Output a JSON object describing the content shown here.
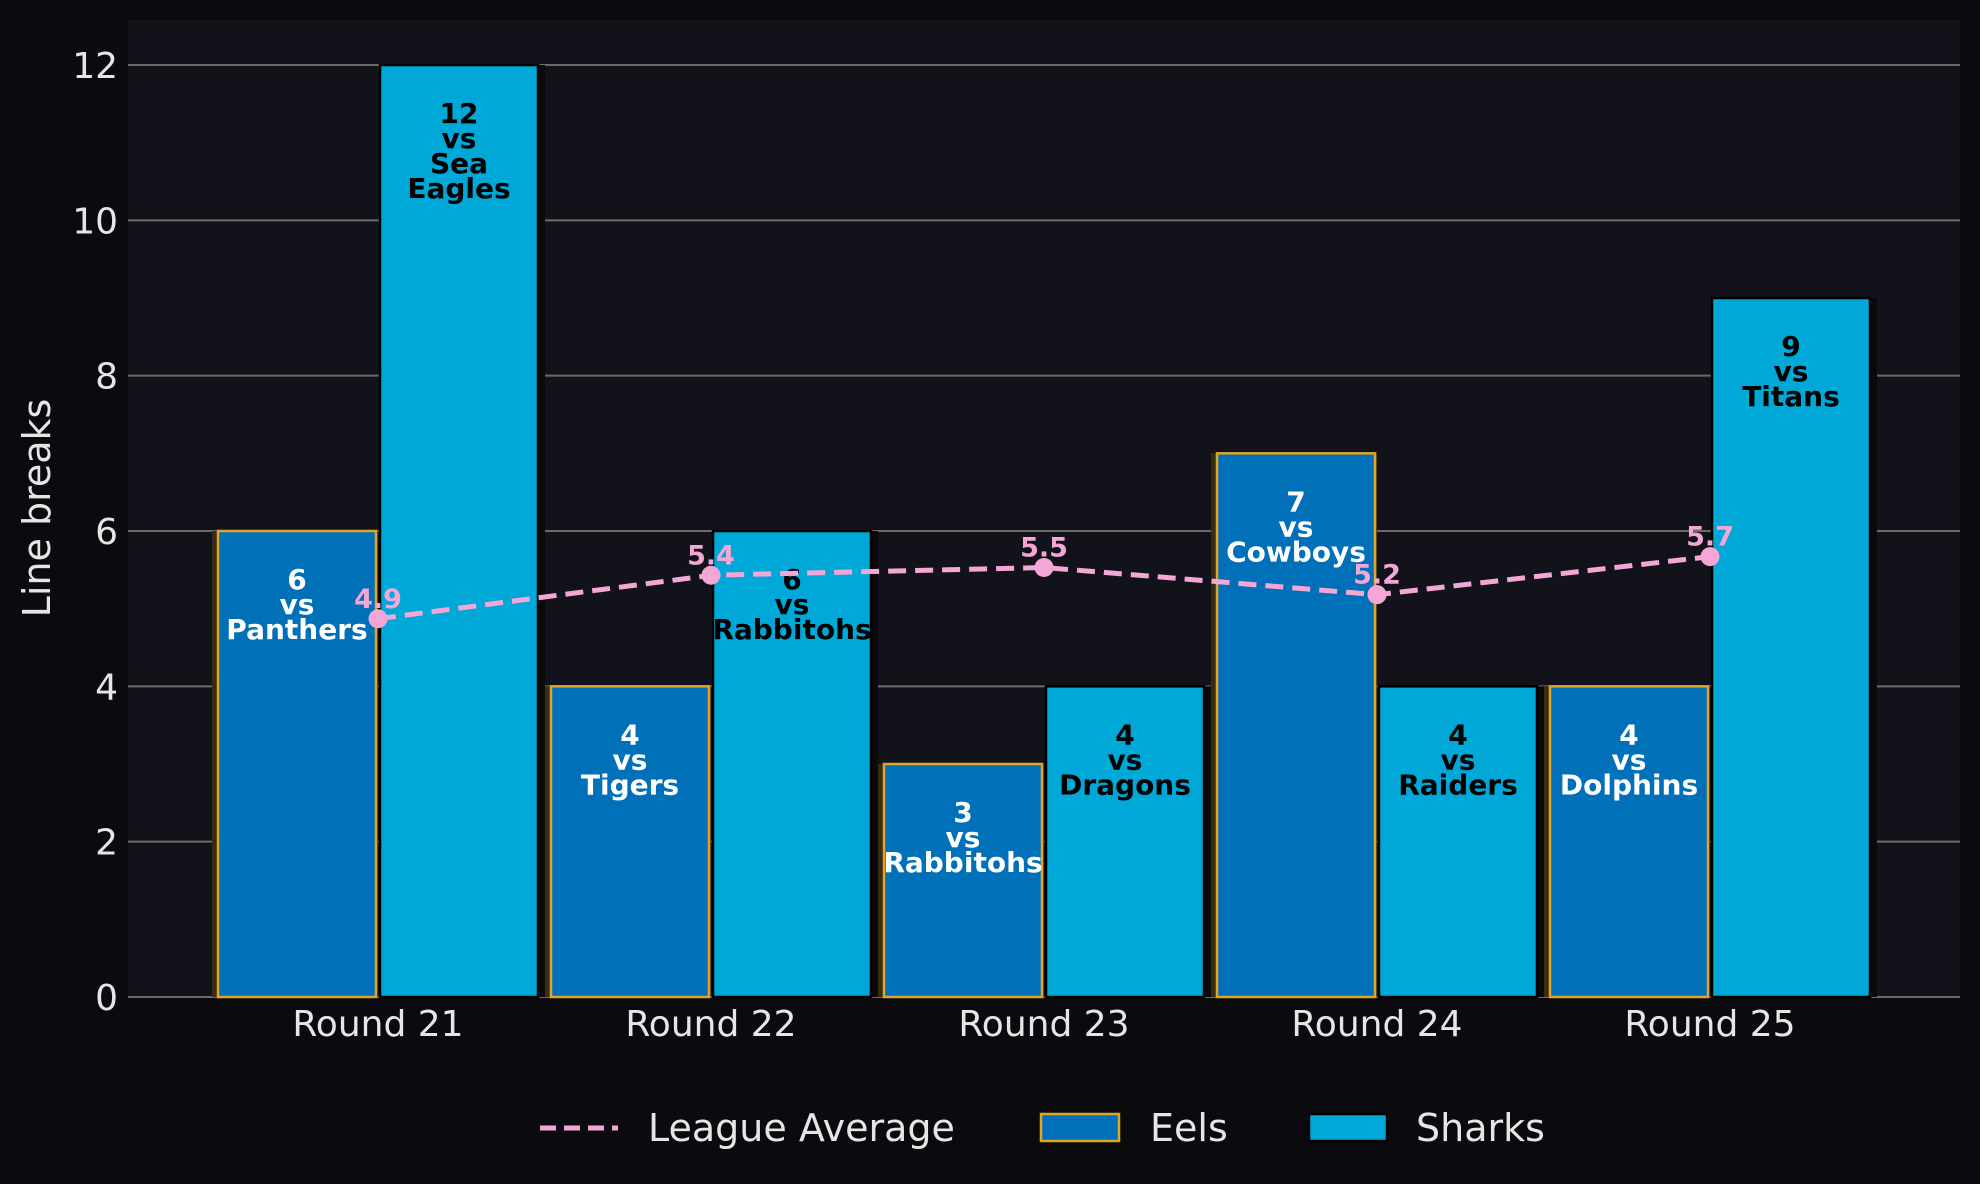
{
  "chart_data": {
    "type": "bar",
    "ylabel": "Line breaks",
    "ylim": [
      0,
      12.6
    ],
    "yticks": [
      0,
      2,
      4,
      6,
      8,
      10,
      12
    ],
    "grid": true,
    "legend_position": "bottom-center",
    "categories": [
      "Round 21",
      "Round 22",
      "Round 23",
      "Round 24",
      "Round 25"
    ],
    "series": [
      {
        "name": "Eels",
        "kind": "bar",
        "color": "#0070b8",
        "edge_color": "#e0a526",
        "values": [
          6,
          4,
          3,
          7,
          4
        ],
        "opponents": [
          "Panthers",
          "Tigers",
          "Rabbitohs",
          "Cowboys",
          "Dolphins"
        ],
        "label_color": "#ffffff"
      },
      {
        "name": "Sharks",
        "kind": "bar",
        "color": "#00a8d8",
        "edge_color": "#000000",
        "values": [
          12,
          6,
          4,
          4,
          9
        ],
        "opponents": [
          "Sea Eagles",
          "Rabbitohs",
          "Dragons",
          "Raiders",
          "Titans"
        ],
        "label_color": "#000000"
      },
      {
        "name": "League Average",
        "kind": "line",
        "style": "dashed",
        "color": "#f4a6d7",
        "values": [
          4.9,
          5.4,
          5.5,
          5.2,
          5.7
        ],
        "plotted_values": [
          4.87,
          5.43,
          5.53,
          5.18,
          5.67
        ]
      }
    ],
    "bar_label_connector": "vs"
  },
  "theme": {
    "page_bg": "#0b0b0f",
    "plot_bg": "#12131a",
    "grid_color": "#6b6b6b",
    "text_color": "#e6e6e6"
  }
}
